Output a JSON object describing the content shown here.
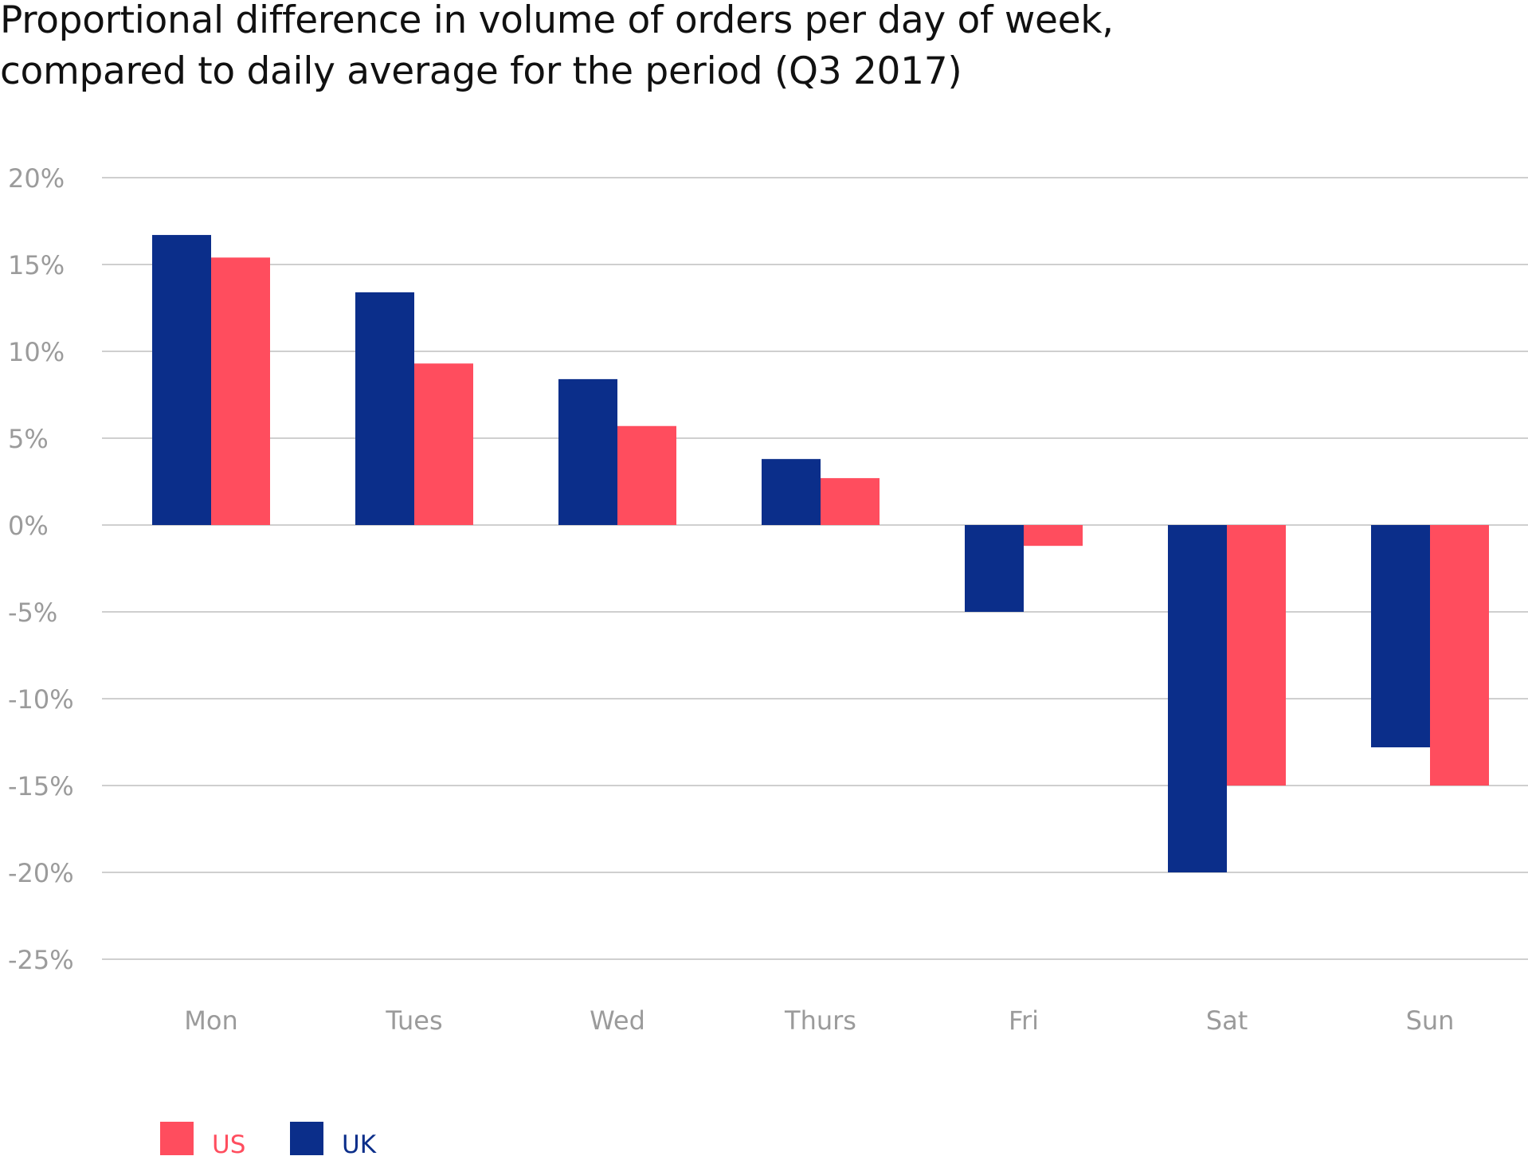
{
  "chart_data": {
    "type": "bar",
    "title": [
      "Proportional difference in volume of orders per day of week,",
      "compared to daily average for the period (Q3 2017)"
    ],
    "xlabel": "",
    "ylabel": "",
    "categories": [
      "Mon",
      "Tues",
      "Wed",
      "Thurs",
      "Fri",
      "Sat",
      "Sun"
    ],
    "series": [
      {
        "name": "UK",
        "color": "#0b2e8a",
        "values": [
          16.7,
          13.4,
          8.4,
          3.8,
          -5.0,
          -20.0,
          -12.8
        ]
      },
      {
        "name": "US",
        "color": "#ff4d5e",
        "values": [
          15.4,
          9.3,
          5.7,
          2.7,
          -1.2,
          -15.0,
          -15.0
        ]
      }
    ],
    "ylim": [
      -25,
      20
    ],
    "yticks": [
      20,
      15,
      10,
      5,
      0,
      -5,
      -10,
      -15,
      -20,
      -25
    ],
    "ytick_labels": [
      "20%",
      "15%",
      "10%",
      "5%",
      "0%",
      "-5%",
      "-10%",
      "-15%",
      "-20%",
      "-25%"
    ],
    "grid": true,
    "legend": {
      "position": "bottom-left",
      "items": [
        {
          "label": "US",
          "color": "#ff4d5e"
        },
        {
          "label": "UK",
          "color": "#0b2e8a"
        }
      ]
    }
  }
}
